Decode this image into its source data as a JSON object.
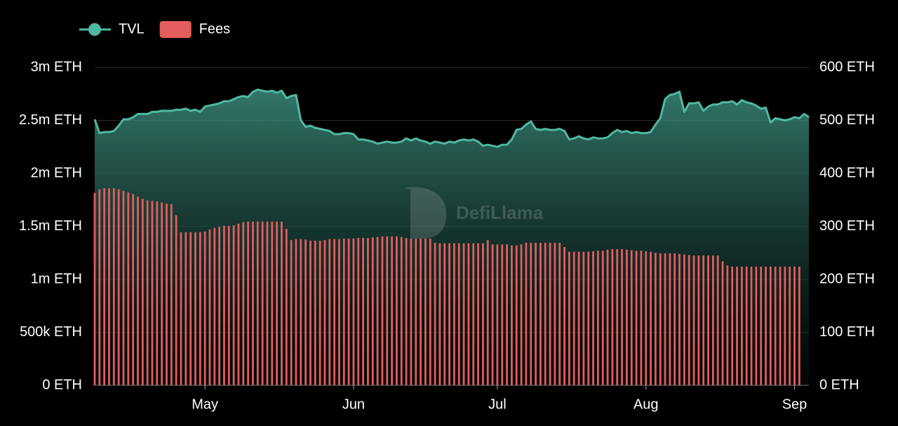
{
  "chart_data": {
    "type": "combo",
    "watermark": "DefiLlama",
    "categories": [
      null,
      null,
      null,
      null,
      null,
      null,
      null,
      null,
      null,
      null,
      null,
      null,
      null,
      null,
      null,
      null,
      null,
      null,
      null,
      null,
      null,
      null,
      null,
      "May",
      null,
      null,
      null,
      null,
      null,
      null,
      null,
      null,
      null,
      null,
      null,
      null,
      null,
      null,
      null,
      null,
      null,
      null,
      null,
      null,
      null,
      null,
      null,
      null,
      null,
      null,
      null,
      null,
      null,
      null,
      "Jun",
      null,
      null,
      null,
      null,
      null,
      null,
      null,
      null,
      null,
      null,
      null,
      null,
      null,
      null,
      null,
      null,
      null,
      null,
      null,
      null,
      null,
      null,
      null,
      null,
      null,
      null,
      null,
      null,
      null,
      "Jul",
      null,
      null,
      null,
      null,
      null,
      null,
      null,
      null,
      null,
      null,
      null,
      null,
      null,
      null,
      null,
      null,
      null,
      null,
      null,
      null,
      null,
      null,
      null,
      null,
      null,
      null,
      null,
      null,
      null,
      null,
      "Aug",
      null,
      null,
      null,
      null,
      null,
      null,
      null,
      null,
      null,
      null,
      null,
      null,
      null,
      null,
      null,
      null,
      null,
      null,
      null,
      null,
      null,
      null,
      null,
      null,
      null,
      null,
      null,
      null,
      null,
      null,
      "Sep",
      null,
      null,
      null
    ],
    "series": [
      {
        "name": "TVL",
        "type": "area",
        "axis": "y",
        "color": "#4fb8a3",
        "values": [
          2510000,
          2380000,
          2390000,
          2390000,
          2400000,
          2450000,
          2510000,
          2510000,
          2530000,
          2560000,
          2560000,
          2560000,
          2580000,
          2580000,
          2590000,
          2590000,
          2590000,
          2600000,
          2600000,
          2610000,
          2590000,
          2600000,
          2580000,
          2630000,
          2640000,
          2650000,
          2660000,
          2680000,
          2680000,
          2700000,
          2720000,
          2730000,
          2720000,
          2770000,
          2790000,
          2780000,
          2770000,
          2780000,
          2760000,
          2780000,
          2710000,
          2730000,
          2740000,
          2500000,
          2440000,
          2450000,
          2430000,
          2420000,
          2410000,
          2400000,
          2370000,
          2370000,
          2380000,
          2380000,
          2370000,
          2320000,
          2320000,
          2310000,
          2300000,
          2280000,
          2290000,
          2300000,
          2290000,
          2290000,
          2300000,
          2330000,
          2310000,
          2330000,
          2310000,
          2300000,
          2280000,
          2300000,
          2290000,
          2280000,
          2300000,
          2290000,
          2310000,
          2320000,
          2310000,
          2320000,
          2300000,
          2260000,
          2270000,
          2260000,
          2250000,
          2270000,
          2270000,
          2320000,
          2410000,
          2420000,
          2460000,
          2490000,
          2420000,
          2410000,
          2420000,
          2410000,
          2410000,
          2420000,
          2400000,
          2320000,
          2330000,
          2350000,
          2330000,
          2320000,
          2340000,
          2330000,
          2330000,
          2340000,
          2380000,
          2410000,
          2390000,
          2400000,
          2380000,
          2390000,
          2380000,
          2380000,
          2390000,
          2460000,
          2520000,
          2700000,
          2740000,
          2750000,
          2770000,
          2580000,
          2660000,
          2660000,
          2670000,
          2590000,
          2630000,
          2650000,
          2650000,
          2670000,
          2670000,
          2680000,
          2650000,
          2690000,
          2670000,
          2660000,
          2640000,
          2610000,
          2620000,
          2480000,
          2520000,
          2510000,
          2500000,
          2510000,
          2530000,
          2520000,
          2560000,
          2530000
        ]
      },
      {
        "name": "Fees",
        "type": "bar",
        "axis": "y2",
        "color": "#e35d5d",
        "values": [
          363,
          370,
          372,
          372,
          372,
          370,
          367,
          364,
          361,
          356,
          352,
          349,
          348,
          347,
          345,
          343,
          342,
          321,
          289,
          289,
          289,
          289,
          289,
          290,
          294,
          297,
          299,
          301,
          301,
          302,
          305,
          308,
          309,
          309,
          309,
          309,
          309,
          309,
          309,
          309,
          295,
          274,
          276,
          276,
          275,
          273,
          273,
          273,
          274,
          276,
          276,
          276,
          277,
          277,
          277,
          278,
          278,
          278,
          279,
          280,
          281,
          281,
          281,
          281,
          280,
          278,
          277,
          277,
          277,
          277,
          277,
          269,
          268,
          268,
          268,
          268,
          268,
          268,
          268,
          268,
          268,
          268,
          274,
          266,
          266,
          266,
          266,
          264,
          264,
          266,
          269,
          269,
          269,
          269,
          269,
          269,
          269,
          269,
          261,
          252,
          252,
          252,
          252,
          252,
          253,
          254,
          254,
          256,
          257,
          257,
          257,
          256,
          255,
          254,
          254,
          253,
          252,
          250,
          249,
          249,
          249,
          249,
          248,
          247,
          246,
          245,
          245,
          245,
          245,
          245,
          245,
          234,
          226,
          224,
          224,
          224,
          224,
          224,
          224,
          224,
          224,
          224,
          224,
          224,
          224,
          224,
          224,
          224,
          null,
          null
        ]
      }
    ],
    "ylim": [
      0,
      3000000
    ],
    "yticks": [
      {
        "value": 0,
        "label": "0 ETH"
      },
      {
        "value": 500000,
        "label": "500k ETH"
      },
      {
        "value": 1000000,
        "label": "1m ETH"
      },
      {
        "value": 1500000,
        "label": "1.5m ETH"
      },
      {
        "value": 2000000,
        "label": "2m ETH"
      },
      {
        "value": 2500000,
        "label": "2.5m ETH"
      },
      {
        "value": 3000000,
        "label": "3m ETH"
      }
    ],
    "y2lim": [
      0,
      600
    ],
    "y2ticks": [
      {
        "value": 0,
        "label": "0 ETH"
      },
      {
        "value": 100,
        "label": "100 ETH"
      },
      {
        "value": 200,
        "label": "200 ETH"
      },
      {
        "value": 300,
        "label": "300 ETH"
      },
      {
        "value": 400,
        "label": "400 ETH"
      },
      {
        "value": 500,
        "label": "500 ETH"
      },
      {
        "value": 600,
        "label": "600 ETH"
      }
    ],
    "grid": true
  }
}
